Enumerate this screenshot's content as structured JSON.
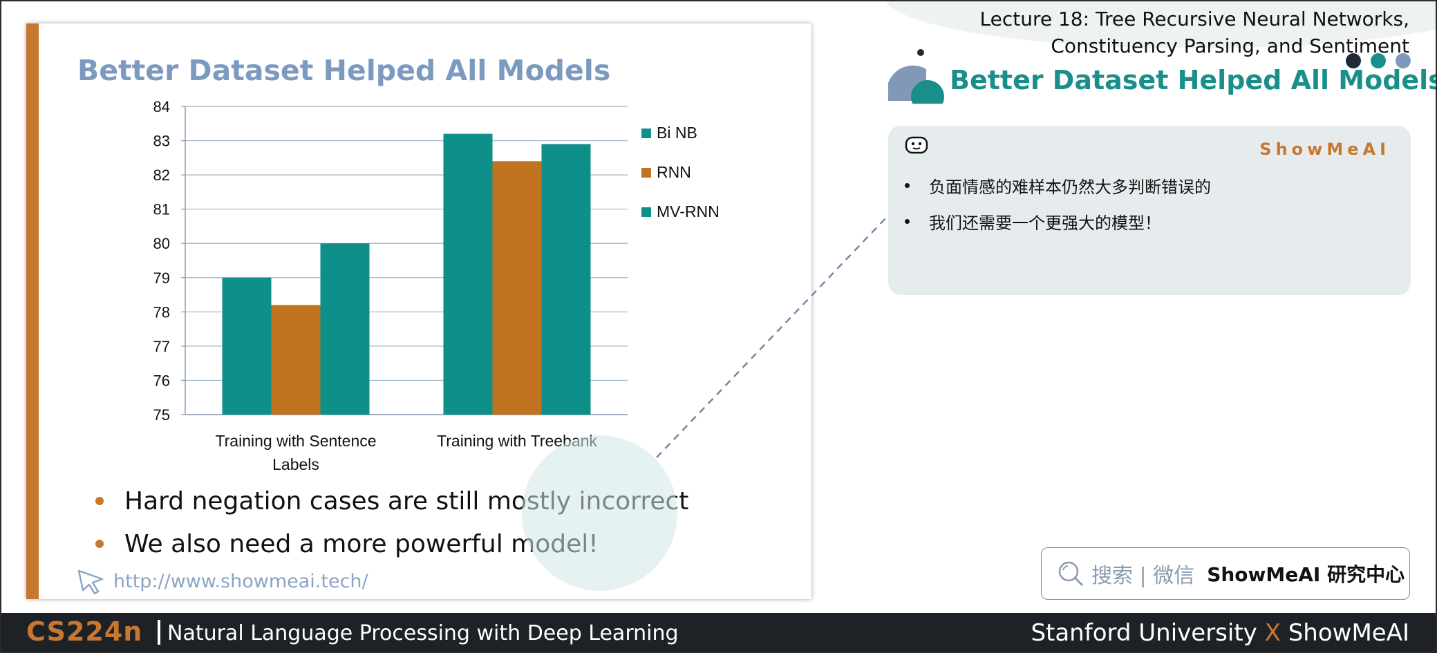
{
  "slide": {
    "title": "Better Dataset Helped All Models",
    "bullets": [
      "Hard negation cases are still mostly incorrect",
      "We also need a more powerful model!"
    ],
    "url": "http://www.showmeai.tech/"
  },
  "chart_data": {
    "type": "bar",
    "categories": [
      "Training with Sentence Labels",
      "Training with Treebank"
    ],
    "series": [
      {
        "name": "Bi NB",
        "values": [
          79.0,
          83.2
        ],
        "color": "#0e8f8a"
      },
      {
        "name": "RNN",
        "values": [
          78.2,
          82.4
        ],
        "color": "#c2731f"
      },
      {
        "name": "MV-RNN",
        "values": [
          80.0,
          82.9
        ],
        "color": "#0e8f8a"
      }
    ],
    "ylim": [
      75,
      84
    ],
    "yticks": [
      75,
      76,
      77,
      78,
      79,
      80,
      81,
      82,
      83,
      84
    ],
    "grid": true,
    "legend": "right"
  },
  "header": {
    "lecture_line1": "Lecture 18: Tree Recursive Neural Networks,",
    "lecture_line2": "Constituency Parsing, and Sentiment",
    "title": "Better Dataset Helped All Models"
  },
  "note": {
    "brand": "ShowMeAI",
    "items": [
      "负面情感的难样本仍然大多判断错误的",
      "我们还需要一个更强大的模型！"
    ]
  },
  "search": {
    "label": "搜索 | 微信",
    "brand": "ShowMeAI 研究中心"
  },
  "footer": {
    "course_code": "CS224n",
    "course_name": "Natural Language Processing with Deep Learning",
    "left_org": "Stanford University",
    "x": "X",
    "right_org": "ShowMeAI"
  }
}
